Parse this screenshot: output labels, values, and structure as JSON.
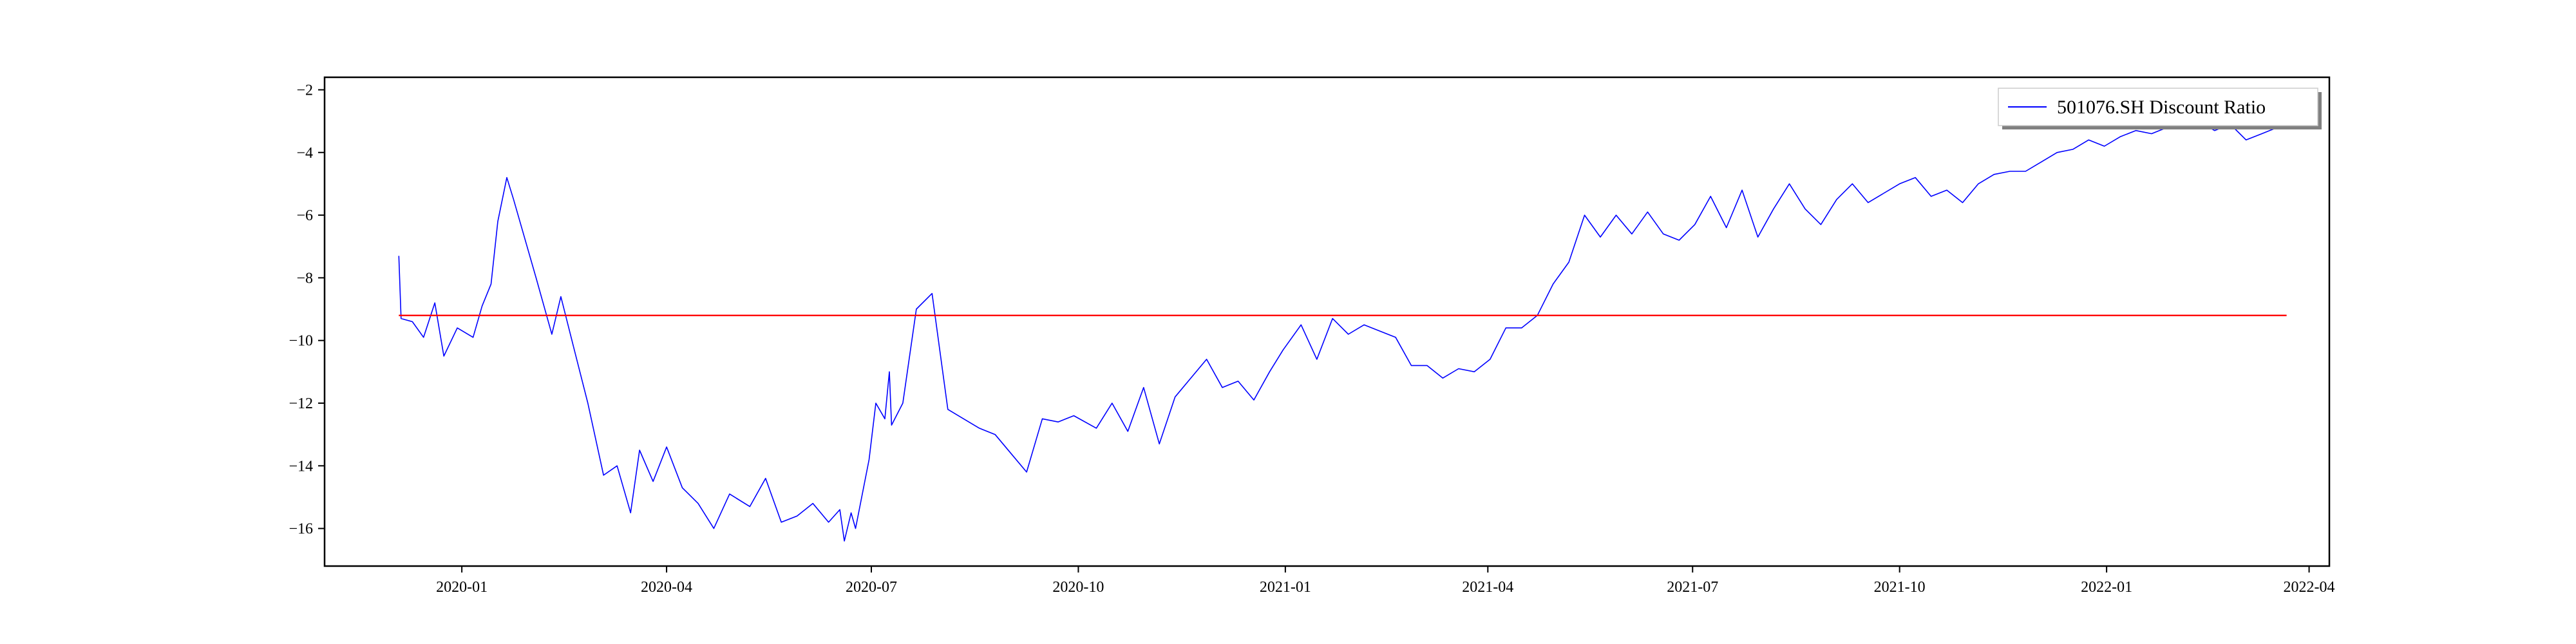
{
  "chart_data": {
    "type": "line",
    "title": "",
    "xlabel": "",
    "ylabel": "",
    "xlim": [
      "2019-11-01",
      "2022-04-10"
    ],
    "ylim": [
      -17.2,
      -1.6
    ],
    "grid": false,
    "legend_position": "top-right",
    "x_ticks": [
      "2020-01",
      "2020-04",
      "2020-07",
      "2020-10",
      "2021-01",
      "2021-04",
      "2021-07",
      "2021-10",
      "2022-01",
      "2022-04"
    ],
    "y_ticks": [
      -2,
      -4,
      -6,
      -8,
      -10,
      -12,
      -14,
      -16
    ],
    "series": [
      {
        "name": "501076.SH Discount Ratio",
        "color": "#0000ff",
        "x": [
          "2019-12-04",
          "2019-12-05",
          "2019-12-10",
          "2019-12-15",
          "2019-12-20",
          "2019-12-24",
          "2019-12-30",
          "2020-01-06",
          "2020-01-10",
          "2020-01-14",
          "2020-01-17",
          "2020-01-21",
          "2020-01-24",
          "2020-02-03",
          "2020-02-10",
          "2020-02-14",
          "2020-02-20",
          "2020-02-26",
          "2020-03-04",
          "2020-03-10",
          "2020-03-16",
          "2020-03-20",
          "2020-03-26",
          "2020-04-01",
          "2020-04-08",
          "2020-04-15",
          "2020-04-22",
          "2020-04-29",
          "2020-05-08",
          "2020-05-15",
          "2020-05-22",
          "2020-05-29",
          "2020-06-05",
          "2020-06-12",
          "2020-06-17",
          "2020-06-19",
          "2020-06-22",
          "2020-06-24",
          "2020-06-30",
          "2020-07-03",
          "2020-07-07",
          "2020-07-09",
          "2020-07-10",
          "2020-07-15",
          "2020-07-21",
          "2020-07-28",
          "2020-08-04",
          "2020-08-11",
          "2020-08-18",
          "2020-08-25",
          "2020-09-01",
          "2020-09-08",
          "2020-09-15",
          "2020-09-22",
          "2020-09-29",
          "2020-10-09",
          "2020-10-16",
          "2020-10-23",
          "2020-10-30",
          "2020-11-06",
          "2020-11-13",
          "2020-11-20",
          "2020-11-27",
          "2020-12-04",
          "2020-12-11",
          "2020-12-18",
          "2020-12-25",
          "2020-12-31",
          "2021-01-08",
          "2021-01-15",
          "2021-01-22",
          "2021-01-29",
          "2021-02-05",
          "2021-02-19",
          "2021-02-26",
          "2021-03-05",
          "2021-03-12",
          "2021-03-19",
          "2021-03-26",
          "2021-04-02",
          "2021-04-09",
          "2021-04-16",
          "2021-04-23",
          "2021-04-30",
          "2021-05-07",
          "2021-05-14",
          "2021-05-21",
          "2021-05-28",
          "2021-06-04",
          "2021-06-11",
          "2021-06-18",
          "2021-06-25",
          "2021-07-02",
          "2021-07-09",
          "2021-07-16",
          "2021-07-23",
          "2021-07-30",
          "2021-08-06",
          "2021-08-13",
          "2021-08-20",
          "2021-08-27",
          "2021-09-03",
          "2021-09-10",
          "2021-09-17",
          "2021-09-24",
          "2021-10-01",
          "2021-10-08",
          "2021-10-15",
          "2021-10-22",
          "2021-10-29",
          "2021-11-05",
          "2021-11-12",
          "2021-11-19",
          "2021-11-26",
          "2021-12-03",
          "2021-12-10",
          "2021-12-17",
          "2021-12-24",
          "2021-12-31",
          "2022-01-07",
          "2022-01-14",
          "2022-01-21",
          "2022-01-28",
          "2022-02-04",
          "2022-02-11",
          "2022-02-18",
          "2022-02-25",
          "2022-03-04",
          "2022-03-11",
          "2022-03-18"
        ],
        "y": [
          -7.3,
          -9.3,
          -9.4,
          -9.9,
          -8.8,
          -10.5,
          -9.6,
          -9.9,
          -8.9,
          -8.2,
          -6.2,
          -4.8,
          -5.5,
          -8.0,
          -9.8,
          -8.6,
          -10.3,
          -12.0,
          -14.3,
          -14.0,
          -15.5,
          -13.5,
          -14.5,
          -13.4,
          -14.7,
          -15.2,
          -16.0,
          -14.9,
          -15.3,
          -14.4,
          -15.8,
          -15.6,
          -15.2,
          -15.8,
          -15.4,
          -16.4,
          -15.5,
          -16.0,
          -13.8,
          -12.0,
          -12.5,
          -11.0,
          -12.7,
          -12.0,
          -9.0,
          -8.5,
          -12.2,
          -12.5,
          -12.8,
          -13.0,
          -13.6,
          -14.2,
          -12.5,
          -12.6,
          -12.4,
          -12.8,
          -12.0,
          -12.9,
          -11.5,
          -13.3,
          -11.8,
          -11.2,
          -10.6,
          -11.5,
          -11.3,
          -11.9,
          -11.0,
          -10.3,
          -9.5,
          -10.6,
          -9.3,
          -9.8,
          -9.5,
          -9.9,
          -10.8,
          -10.8,
          -11.2,
          -10.9,
          -11.0,
          -10.6,
          -9.6,
          -9.6,
          -9.2,
          -8.2,
          -7.5,
          -6.0,
          -6.7,
          -6.0,
          -6.6,
          -5.9,
          -6.6,
          -6.8,
          -6.3,
          -5.4,
          -6.4,
          -5.2,
          -6.7,
          -5.8,
          -5.0,
          -5.8,
          -6.3,
          -5.5,
          -5.0,
          -5.6,
          -5.3,
          -5.0,
          -4.8,
          -5.4,
          -5.2,
          -5.6,
          -5.0,
          -4.7,
          -4.6,
          -4.6,
          -4.3,
          -4.0,
          -3.9,
          -3.6,
          -3.8,
          -3.5,
          -3.3,
          -3.4,
          -3.2,
          -3.1,
          -3.0,
          -3.3,
          -3.1,
          -3.6,
          -3.4,
          -3.2
        ]
      },
      {
        "name": "",
        "color": "#ff0000",
        "x": [
          "2019-12-04",
          "2022-03-22"
        ],
        "y": [
          -9.2,
          -9.2
        ]
      }
    ]
  }
}
